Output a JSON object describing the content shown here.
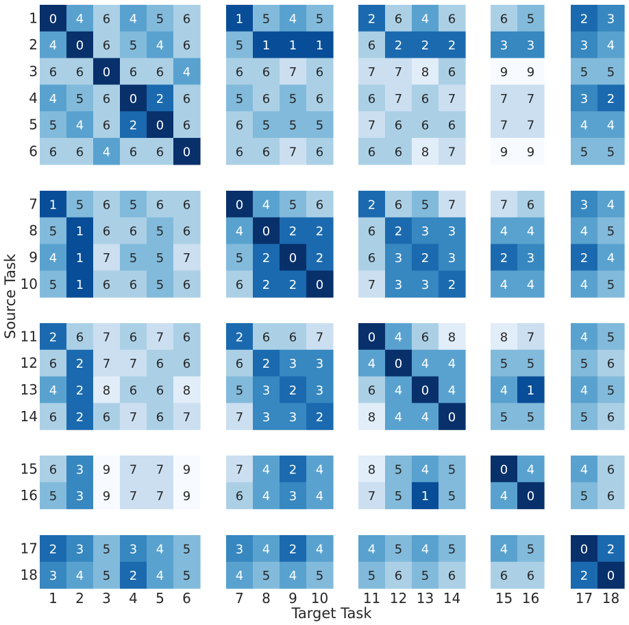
{
  "chart_data": {
    "type": "heatmap",
    "xlabel": "Target Task",
    "ylabel": "Source Task",
    "x_categories": [
      "1",
      "2",
      "3",
      "4",
      "5",
      "6",
      "7",
      "8",
      "9",
      "10",
      "11",
      "12",
      "13",
      "14",
      "15",
      "16",
      "17",
      "18"
    ],
    "y_categories": [
      "1",
      "2",
      "3",
      "4",
      "5",
      "6",
      "7",
      "8",
      "9",
      "10",
      "11",
      "12",
      "13",
      "14",
      "15",
      "16",
      "17",
      "18"
    ],
    "column_groups": [
      [
        "1",
        "2",
        "3",
        "4",
        "5",
        "6"
      ],
      [
        "7",
        "8",
        "9",
        "10"
      ],
      [
        "11",
        "12",
        "13",
        "14"
      ],
      [
        "15",
        "16"
      ],
      [
        "17",
        "18"
      ]
    ],
    "row_groups": [
      [
        "1",
        "2",
        "3",
        "4",
        "5",
        "6"
      ],
      [
        "7",
        "8",
        "9",
        "10"
      ],
      [
        "11",
        "12",
        "13",
        "14"
      ],
      [
        "15",
        "16"
      ],
      [
        "17",
        "18"
      ]
    ],
    "colormap": "Blues",
    "value_range": [
      0,
      9
    ],
    "values": [
      [
        0,
        4,
        6,
        4,
        5,
        6,
        1,
        5,
        4,
        5,
        2,
        6,
        4,
        6,
        6,
        5,
        2,
        3
      ],
      [
        4,
        0,
        6,
        5,
        4,
        6,
        5,
        1,
        1,
        1,
        6,
        2,
        2,
        2,
        3,
        3,
        3,
        4
      ],
      [
        6,
        6,
        0,
        6,
        6,
        4,
        6,
        6,
        7,
        6,
        7,
        7,
        8,
        6,
        9,
        9,
        5,
        5
      ],
      [
        4,
        5,
        6,
        0,
        2,
        6,
        5,
        6,
        5,
        6,
        6,
        7,
        6,
        7,
        7,
        7,
        3,
        2
      ],
      [
        5,
        4,
        6,
        2,
        0,
        6,
        6,
        5,
        5,
        5,
        7,
        6,
        6,
        6,
        7,
        7,
        4,
        4
      ],
      [
        6,
        6,
        4,
        6,
        6,
        0,
        6,
        6,
        7,
        6,
        6,
        6,
        8,
        7,
        9,
        9,
        5,
        5
      ],
      [
        1,
        5,
        6,
        5,
        6,
        6,
        0,
        4,
        5,
        6,
        2,
        6,
        5,
        7,
        7,
        6,
        3,
        4
      ],
      [
        5,
        1,
        6,
        6,
        5,
        6,
        4,
        0,
        2,
        2,
        6,
        2,
        3,
        3,
        4,
        4,
        4,
        5
      ],
      [
        4,
        1,
        7,
        5,
        5,
        7,
        5,
        2,
        0,
        2,
        6,
        3,
        2,
        3,
        2,
        3,
        2,
        4
      ],
      [
        5,
        1,
        6,
        6,
        5,
        6,
        6,
        2,
        2,
        0,
        7,
        3,
        3,
        2,
        4,
        4,
        4,
        5
      ],
      [
        2,
        6,
        7,
        6,
        7,
        6,
        2,
        6,
        6,
        7,
        0,
        4,
        6,
        8,
        8,
        7,
        4,
        5
      ],
      [
        6,
        2,
        7,
        7,
        6,
        6,
        6,
        2,
        3,
        3,
        4,
        0,
        4,
        4,
        5,
        5,
        5,
        6
      ],
      [
        4,
        2,
        8,
        6,
        6,
        8,
        5,
        3,
        2,
        3,
        6,
        4,
        0,
        4,
        4,
        1,
        4,
        5
      ],
      [
        6,
        2,
        6,
        7,
        6,
        7,
        7,
        3,
        3,
        2,
        8,
        4,
        4,
        0,
        5,
        5,
        5,
        6
      ],
      [
        6,
        3,
        9,
        7,
        7,
        9,
        7,
        4,
        2,
        4,
        8,
        5,
        4,
        5,
        0,
        4,
        4,
        6
      ],
      [
        5,
        3,
        9,
        7,
        7,
        9,
        6,
        4,
        3,
        4,
        7,
        5,
        1,
        5,
        4,
        0,
        5,
        6
      ],
      [
        2,
        3,
        5,
        3,
        4,
        5,
        3,
        4,
        2,
        4,
        4,
        5,
        4,
        5,
        4,
        5,
        0,
        2
      ],
      [
        3,
        4,
        5,
        2,
        4,
        5,
        4,
        5,
        4,
        5,
        5,
        6,
        5,
        6,
        6,
        6,
        2,
        0
      ]
    ]
  }
}
